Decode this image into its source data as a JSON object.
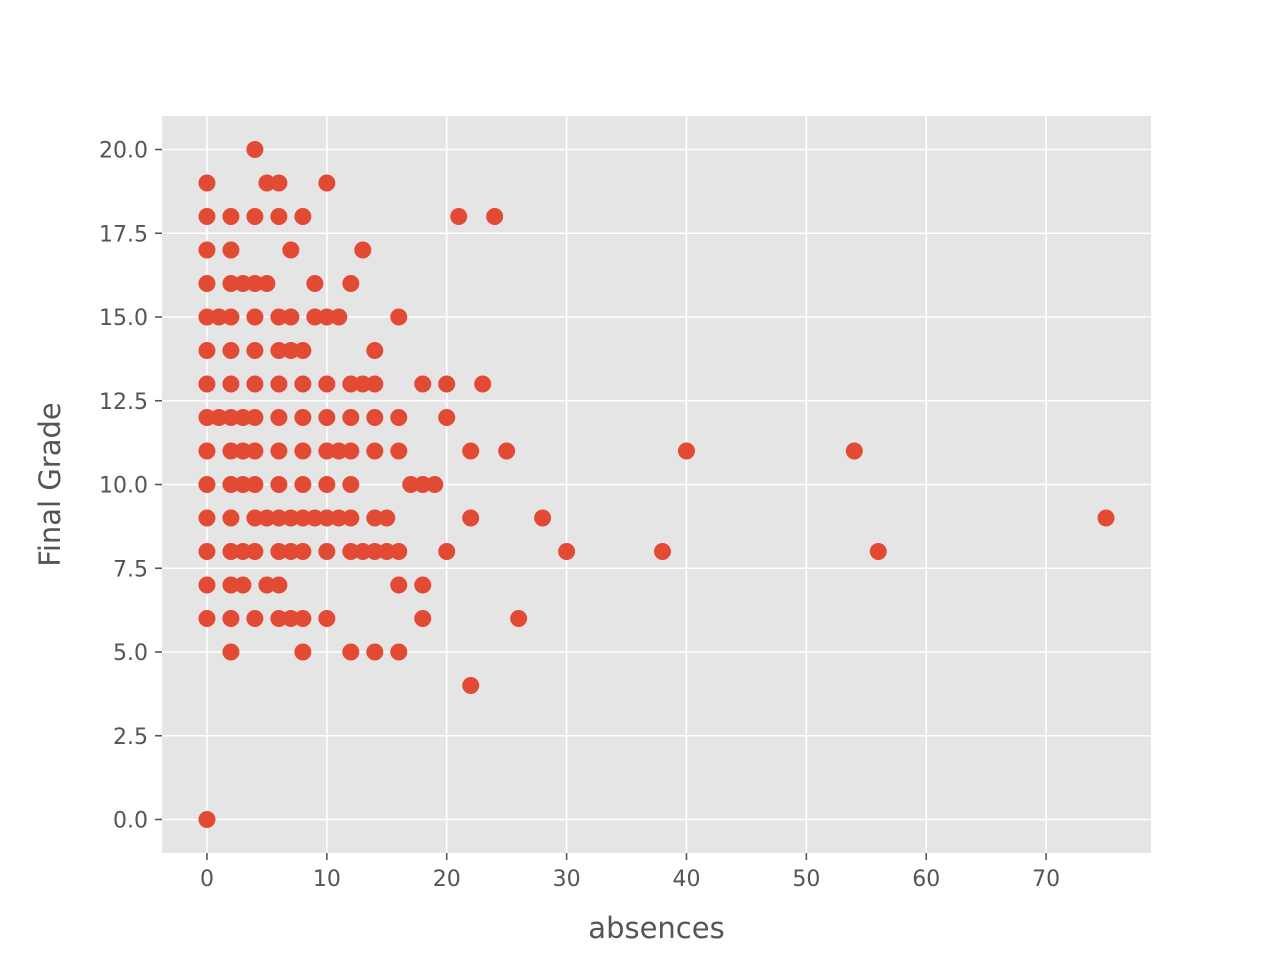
{
  "chart_data": {
    "type": "scatter",
    "title": "",
    "xlabel": "absences",
    "ylabel": "Final Grade",
    "xlim": [
      -3.75,
      78.75
    ],
    "ylim": [
      -1.0,
      21.0
    ],
    "xticks": [
      0,
      10,
      20,
      30,
      40,
      50,
      60,
      70
    ],
    "xtick_labels": [
      "0",
      "10",
      "20",
      "30",
      "40",
      "50",
      "60",
      "70"
    ],
    "yticks": [
      0,
      2.5,
      5,
      7.5,
      10,
      12.5,
      15,
      17.5,
      20
    ],
    "ytick_labels": [
      "0.0",
      "2.5",
      "5.0",
      "7.5",
      "10.0",
      "12.5",
      "15.0",
      "17.5",
      "20.0"
    ],
    "grid": true,
    "background_color": "#e5e5e5",
    "grid_color": "#ffffff",
    "marker_color": "#e24a33",
    "points": [
      [
        0,
        0
      ],
      [
        0,
        6
      ],
      [
        0,
        7
      ],
      [
        0,
        8
      ],
      [
        0,
        9
      ],
      [
        0,
        10
      ],
      [
        0,
        11
      ],
      [
        0,
        12
      ],
      [
        0,
        13
      ],
      [
        0,
        14
      ],
      [
        0,
        15
      ],
      [
        0,
        16
      ],
      [
        0,
        17
      ],
      [
        0,
        18
      ],
      [
        0,
        19
      ],
      [
        1,
        12
      ],
      [
        1,
        15
      ],
      [
        2,
        5
      ],
      [
        2,
        6
      ],
      [
        2,
        7
      ],
      [
        2,
        8
      ],
      [
        2,
        9
      ],
      [
        2,
        10
      ],
      [
        2,
        11
      ],
      [
        2,
        12
      ],
      [
        2,
        13
      ],
      [
        2,
        14
      ],
      [
        2,
        15
      ],
      [
        2,
        16
      ],
      [
        2,
        17
      ],
      [
        2,
        18
      ],
      [
        3,
        7
      ],
      [
        3,
        8
      ],
      [
        3,
        10
      ],
      [
        3,
        11
      ],
      [
        3,
        12
      ],
      [
        3,
        16
      ],
      [
        4,
        6
      ],
      [
        4,
        8
      ],
      [
        4,
        9
      ],
      [
        4,
        10
      ],
      [
        4,
        11
      ],
      [
        4,
        12
      ],
      [
        4,
        13
      ],
      [
        4,
        14
      ],
      [
        4,
        15
      ],
      [
        4,
        16
      ],
      [
        4,
        18
      ],
      [
        4,
        20
      ],
      [
        5,
        7
      ],
      [
        5,
        9
      ],
      [
        5,
        16
      ],
      [
        5,
        19
      ],
      [
        6,
        6
      ],
      [
        6,
        7
      ],
      [
        6,
        8
      ],
      [
        6,
        9
      ],
      [
        6,
        10
      ],
      [
        6,
        11
      ],
      [
        6,
        12
      ],
      [
        6,
        13
      ],
      [
        6,
        14
      ],
      [
        6,
        15
      ],
      [
        6,
        18
      ],
      [
        6,
        19
      ],
      [
        7,
        6
      ],
      [
        7,
        8
      ],
      [
        7,
        9
      ],
      [
        7,
        14
      ],
      [
        7,
        15
      ],
      [
        7,
        17
      ],
      [
        8,
        5
      ],
      [
        8,
        6
      ],
      [
        8,
        8
      ],
      [
        8,
        9
      ],
      [
        8,
        10
      ],
      [
        8,
        11
      ],
      [
        8,
        12
      ],
      [
        8,
        13
      ],
      [
        8,
        14
      ],
      [
        8,
        18
      ],
      [
        9,
        9
      ],
      [
        9,
        15
      ],
      [
        9,
        16
      ],
      [
        10,
        6
      ],
      [
        10,
        8
      ],
      [
        10,
        9
      ],
      [
        10,
        10
      ],
      [
        10,
        11
      ],
      [
        10,
        12
      ],
      [
        10,
        13
      ],
      [
        10,
        15
      ],
      [
        10,
        19
      ],
      [
        11,
        9
      ],
      [
        11,
        11
      ],
      [
        11,
        15
      ],
      [
        12,
        5
      ],
      [
        12,
        8
      ],
      [
        12,
        9
      ],
      [
        12,
        10
      ],
      [
        12,
        11
      ],
      [
        12,
        12
      ],
      [
        12,
        13
      ],
      [
        12,
        16
      ],
      [
        13,
        8
      ],
      [
        13,
        13
      ],
      [
        13,
        17
      ],
      [
        14,
        5
      ],
      [
        14,
        8
      ],
      [
        14,
        9
      ],
      [
        14,
        11
      ],
      [
        14,
        12
      ],
      [
        14,
        13
      ],
      [
        14,
        14
      ],
      [
        15,
        8
      ],
      [
        15,
        9
      ],
      [
        16,
        5
      ],
      [
        16,
        7
      ],
      [
        16,
        8
      ],
      [
        16,
        11
      ],
      [
        16,
        12
      ],
      [
        16,
        15
      ],
      [
        17,
        10
      ],
      [
        18,
        6
      ],
      [
        18,
        7
      ],
      [
        18,
        10
      ],
      [
        18,
        13
      ],
      [
        19,
        10
      ],
      [
        20,
        8
      ],
      [
        20,
        12
      ],
      [
        20,
        13
      ],
      [
        21,
        18
      ],
      [
        22,
        4
      ],
      [
        22,
        9
      ],
      [
        22,
        11
      ],
      [
        23,
        13
      ],
      [
        24,
        18
      ],
      [
        25,
        11
      ],
      [
        26,
        6
      ],
      [
        28,
        9
      ],
      [
        30,
        8
      ],
      [
        38,
        8
      ],
      [
        40,
        11
      ],
      [
        54,
        11
      ],
      [
        56,
        8
      ],
      [
        75,
        9
      ]
    ]
  }
}
